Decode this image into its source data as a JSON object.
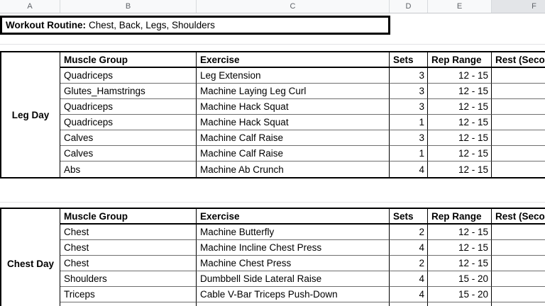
{
  "colors": {
    "header_bg": "#f8f9fa",
    "header_selected_bg": "#e3e5e8",
    "header_text": "#5f6368",
    "header_line": "#c6c9cc",
    "table_border": "#000000",
    "row_line": "#6f6f6f",
    "faint_gridline": "#e2e3e5"
  },
  "column_headers": [
    "A",
    "B",
    "C",
    "D",
    "E",
    "F"
  ],
  "selected_column": "F",
  "title_row": {
    "label": "Workout Routine:",
    "value": "Chest, Back, Legs, Shoulders"
  },
  "tables": [
    {
      "day": "Leg Day",
      "headers": [
        "Muscle Group",
        "Exercise",
        "Sets",
        "Rep Range",
        "Rest (Seconds)"
      ],
      "rows": [
        [
          "Quadriceps",
          "Leg Extension",
          "3",
          "12 - 15",
          ""
        ],
        [
          "Glutes_Hamstrings",
          "Machine Laying Leg Curl",
          "3",
          "12 - 15",
          ""
        ],
        [
          "Quadriceps",
          "Machine Hack Squat",
          "3",
          "12 - 15",
          ""
        ],
        [
          "Quadriceps",
          "Machine Hack Squat",
          "1",
          "12 - 15",
          ""
        ],
        [
          "Calves",
          "Machine Calf Raise",
          "3",
          "12 - 15",
          ""
        ],
        [
          "Calves",
          "Machine Calf Raise",
          "1",
          "12 - 15",
          ""
        ],
        [
          "Abs",
          "Machine Ab Crunch",
          "4",
          "12 - 15",
          ""
        ]
      ]
    },
    {
      "day": "Chest Day",
      "headers": [
        "Muscle Group",
        "Exercise",
        "Sets",
        "Rep Range",
        "Rest (Seconds)"
      ],
      "rows": [
        [
          "Chest",
          "Machine Butterfly",
          "2",
          "12 - 15",
          ""
        ],
        [
          "Chest",
          "Machine Incline Chest Press",
          "4",
          "12 - 15",
          ""
        ],
        [
          "Chest",
          "Machine Chest Press",
          "2",
          "12 - 15",
          ""
        ],
        [
          "Shoulders",
          "Dumbbell Side Lateral Raise",
          "4",
          "15 - 20",
          ""
        ],
        [
          "Triceps",
          "Cable V-Bar Triceps Push-Down",
          "4",
          "15 - 20",
          ""
        ],
        [
          "",
          "",
          "",
          "",
          ""
        ]
      ]
    }
  ]
}
